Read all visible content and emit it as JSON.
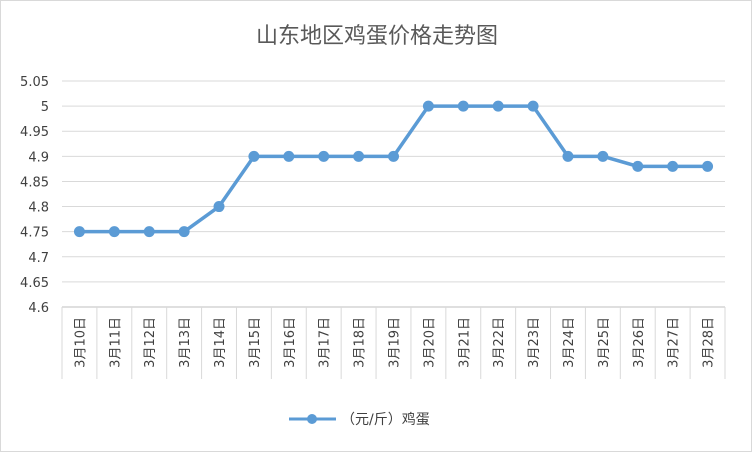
{
  "chart_data": {
    "type": "line",
    "title": "山东地区鸡蛋价格走势图",
    "categories": [
      "3月10日",
      "3月11日",
      "3月12日",
      "3月13日",
      "3月14日",
      "3月15日",
      "3月16日",
      "3月17日",
      "3月18日",
      "3月19日",
      "3月20日",
      "3月21日",
      "3月22日",
      "3月23日",
      "3月24日",
      "3月25日",
      "3月26日",
      "3月27日",
      "3月28日"
    ],
    "series": [
      {
        "name": "（元/斤）鸡蛋",
        "values": [
          4.75,
          4.75,
          4.75,
          4.75,
          4.8,
          4.9,
          4.9,
          4.9,
          4.9,
          4.9,
          5,
          5,
          5,
          5,
          4.9,
          4.9,
          4.88,
          4.88,
          4.88
        ],
        "color": "#5b9bd5"
      }
    ],
    "ylim": [
      4.6,
      5.05
    ],
    "yticks": [
      "4.6",
      "4.65",
      "4.7",
      "4.75",
      "4.8",
      "4.85",
      "4.9",
      "4.95",
      "5",
      "5.05"
    ],
    "grid": true,
    "legend_position": "bottom"
  }
}
